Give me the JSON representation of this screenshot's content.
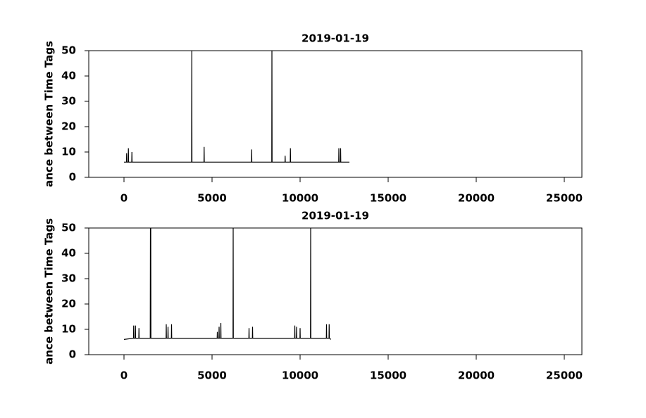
{
  "chart_data": [
    {
      "type": "line",
      "title": "2019-01-19",
      "y_label": "ance between Time Tags",
      "xlim": [
        -2000,
        26000
      ],
      "ylim": [
        0,
        50
      ],
      "xticks": [
        0,
        5000,
        10000,
        15000,
        20000,
        25000
      ],
      "yticks": [
        0,
        10,
        20,
        30,
        40,
        50
      ],
      "series": [
        {
          "color": "#000000",
          "x": [
            0,
            140,
            150,
            160,
            240,
            250,
            260,
            440,
            450,
            460,
            3840,
            3850,
            3860,
            4540,
            4550,
            4560,
            7240,
            7250,
            7260,
            8390,
            8400,
            8410,
            9140,
            9150,
            9160,
            9440,
            9450,
            9460,
            12190,
            12200,
            12210,
            12290,
            12300,
            12310,
            12800
          ],
          "values": [
            6,
            6,
            9.5,
            6,
            6,
            11.5,
            6,
            6,
            10,
            6,
            6,
            50,
            6,
            6,
            12,
            6,
            6,
            11,
            6,
            6,
            50,
            6,
            6,
            8.5,
            6,
            6,
            11.5,
            6,
            6,
            11.5,
            6,
            6,
            11.5,
            6,
            6
          ]
        }
      ]
    },
    {
      "type": "line",
      "title": "2019-01-19",
      "y_label": "ance between Time Tags",
      "xlim": [
        -2000,
        26000
      ],
      "ylim": [
        0,
        50
      ],
      "xticks": [
        0,
        5000,
        10000,
        15000,
        20000,
        25000
      ],
      "yticks": [
        0,
        10,
        20,
        30,
        40,
        50
      ],
      "series": [
        {
          "color": "#000000",
          "x": [
            0,
            540,
            550,
            560,
            640,
            650,
            660,
            840,
            850,
            860,
            1490,
            1500,
            1510,
            1520,
            1530,
            2390,
            2400,
            2410,
            2490,
            2500,
            2510,
            2690,
            2700,
            2710,
            5290,
            5300,
            5310,
            5390,
            5400,
            5410,
            5490,
            5500,
            5510,
            6190,
            6200,
            6210,
            7090,
            7100,
            7110,
            7290,
            7300,
            7310,
            9690,
            9700,
            9710,
            9790,
            9800,
            9810,
            9990,
            10000,
            10010,
            10590,
            10600,
            10610,
            11490,
            11500,
            11510,
            11640,
            11650,
            11660,
            11750
          ],
          "values": [
            6,
            6.5,
            11.5,
            6.5,
            6.5,
            11.5,
            6.5,
            6.5,
            10.5,
            6.5,
            6.5,
            50,
            6.5,
            50,
            6.5,
            6.5,
            12,
            6.5,
            6.5,
            11,
            6.5,
            6.5,
            12,
            6.5,
            6.5,
            9,
            6.5,
            6.5,
            11,
            6.5,
            6.5,
            12.5,
            6.5,
            6.5,
            50,
            6.5,
            6.5,
            10.5,
            6.5,
            6.5,
            11,
            6.5,
            6.5,
            11.5,
            6.5,
            6.5,
            11,
            6.5,
            6.5,
            10.5,
            6.5,
            6.5,
            50,
            6.5,
            6.5,
            12,
            6.5,
            6.5,
            12,
            6.5,
            6
          ]
        }
      ]
    }
  ]
}
